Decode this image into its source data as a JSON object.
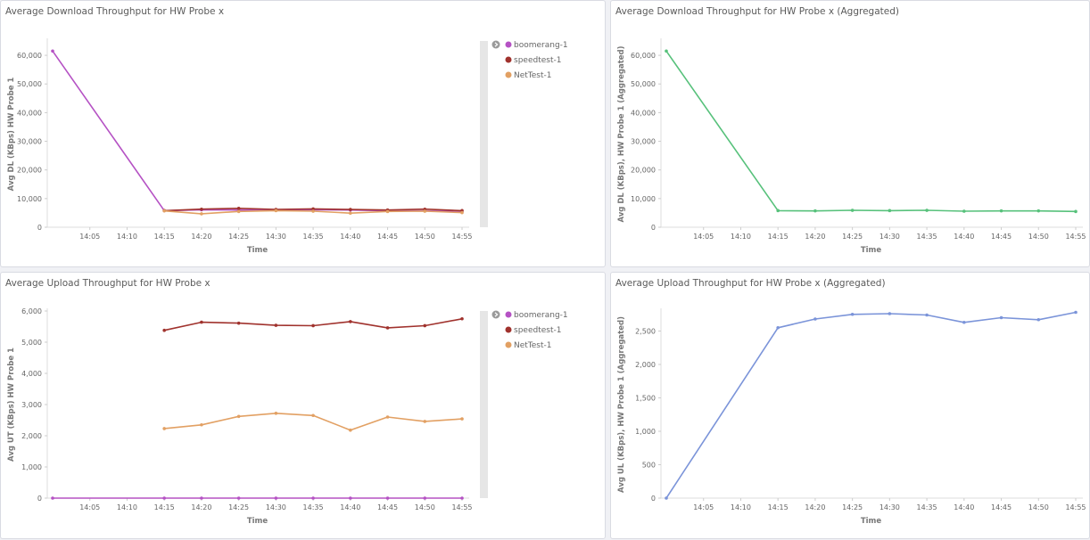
{
  "charts": [
    {
      "title": "Average Download Throughput for HW Probe x",
      "chart_data": {
        "type": "line",
        "title": "Average Download Throughput for HW Probe x",
        "xlabel": "Time",
        "ylabel": "Avg DL (KBps) HW Probe 1",
        "x": [
          "14:00",
          "14:05",
          "14:10",
          "14:15",
          "14:20",
          "14:25",
          "14:30",
          "14:35",
          "14:40",
          "14:45",
          "14:50",
          "14:55"
        ],
        "xticks": [
          "14:05",
          "14:10",
          "14:15",
          "14:20",
          "14:25",
          "14:30",
          "14:35",
          "14:40",
          "14:45",
          "14:50",
          "14:55"
        ],
        "ylim": [
          0,
          65000
        ],
        "yticks": [
          0,
          10000,
          20000,
          30000,
          40000,
          50000,
          60000
        ],
        "yticklabels": [
          "0",
          "10,000",
          "20,000",
          "30,000",
          "40,000",
          "50,000",
          "60,000"
        ],
        "grid": false,
        "legend": "right",
        "series": [
          {
            "name": "boomerang-1",
            "color": "#b552c4",
            "values": [
              61500,
              null,
              null,
              5800,
              6100,
              6000,
              5900,
              6100,
              6000,
              5800,
              5700,
              5500
            ]
          },
          {
            "name": "speedtest-1",
            "color": "#a0322d",
            "values": [
              null,
              null,
              null,
              5800,
              6300,
              6600,
              6200,
              6400,
              6200,
              6000,
              6300,
              5800
            ]
          },
          {
            "name": "NetTest-1",
            "color": "#e2a063",
            "values": [
              null,
              null,
              null,
              5700,
              4700,
              5500,
              5800,
              5600,
              4900,
              5500,
              5600,
              5100
            ]
          }
        ]
      }
    },
    {
      "title": "Average Download Throughput for HW Probe x (Aggregated)",
      "chart_data": {
        "type": "line",
        "title": "Average Download Throughput for HW Probe x (Aggregated)",
        "xlabel": "Time",
        "ylabel": "Avg DL (KBps), HW Probe 1 (Aggregated)",
        "x": [
          "14:00",
          "14:05",
          "14:10",
          "14:15",
          "14:20",
          "14:25",
          "14:30",
          "14:35",
          "14:40",
          "14:45",
          "14:50",
          "14:55"
        ],
        "xticks": [
          "14:05",
          "14:10",
          "14:15",
          "14:20",
          "14:25",
          "14:30",
          "14:35",
          "14:40",
          "14:45",
          "14:50",
          "14:55"
        ],
        "ylim": [
          0,
          65000
        ],
        "yticks": [
          0,
          10000,
          20000,
          30000,
          40000,
          50000,
          60000
        ],
        "yticklabels": [
          "0",
          "10,000",
          "20,000",
          "30,000",
          "40,000",
          "50,000",
          "60,000"
        ],
        "grid": false,
        "legend": "none",
        "series": [
          {
            "color": "#57c17b",
            "values": [
              61500,
              null,
              null,
              5800,
              5700,
              5900,
              5800,
              5900,
              5600,
              5700,
              5700,
              5500
            ]
          }
        ]
      }
    },
    {
      "title": "Average Upload Throughput for HW Probe x",
      "chart_data": {
        "type": "line",
        "title": "Average Upload Throughput for HW Probe x",
        "xlabel": "Time",
        "ylabel": "Avg UT (KBps) HW Probe 1",
        "x": [
          "14:00",
          "14:05",
          "14:10",
          "14:15",
          "14:20",
          "14:25",
          "14:30",
          "14:35",
          "14:40",
          "14:45",
          "14:50",
          "14:55"
        ],
        "xticks": [
          "14:05",
          "14:10",
          "14:15",
          "14:20",
          "14:25",
          "14:30",
          "14:35",
          "14:40",
          "14:45",
          "14:50",
          "14:55"
        ],
        "ylim": [
          0,
          6000
        ],
        "yticks": [
          0,
          1000,
          2000,
          3000,
          4000,
          5000,
          6000
        ],
        "yticklabels": [
          "0",
          "1,000",
          "2,000",
          "3,000",
          "4,000",
          "5,000",
          "6,000"
        ],
        "grid": false,
        "legend": "right",
        "series": [
          {
            "name": "boomerang-1",
            "color": "#b552c4",
            "values": [
              0,
              null,
              null,
              0,
              0,
              0,
              0,
              0,
              0,
              0,
              0,
              0
            ]
          },
          {
            "name": "speedtest-1",
            "color": "#a0322d",
            "values": [
              null,
              null,
              null,
              5380,
              5640,
              5610,
              5540,
              5530,
              5660,
              5460,
              5530,
              5750
            ]
          },
          {
            "name": "NetTest-1",
            "color": "#e2a063",
            "values": [
              null,
              null,
              null,
              2230,
              2350,
              2620,
              2720,
              2650,
              2180,
              2600,
              2460,
              2540
            ]
          }
        ]
      }
    },
    {
      "title": "Average Upload Throughput for HW Probe x (Aggregated)",
      "chart_data": {
        "type": "line",
        "title": "Average Upload Throughput for HW Probe x (Aggregated)",
        "xlabel": "Time",
        "ylabel": "Avg UL (KBps), HW Probe 1 (Aggregated)",
        "x": [
          "14:00",
          "14:05",
          "14:10",
          "14:15",
          "14:20",
          "14:25",
          "14:30",
          "14:35",
          "14:40",
          "14:45",
          "14:50",
          "14:55"
        ],
        "xticks": [
          "14:05",
          "14:10",
          "14:15",
          "14:20",
          "14:25",
          "14:30",
          "14:35",
          "14:40",
          "14:45",
          "14:50",
          "14:55"
        ],
        "ylim": [
          0,
          2800
        ],
        "yticks": [
          0,
          500,
          1000,
          1500,
          2000,
          2500
        ],
        "yticklabels": [
          "0",
          "500",
          "1,000",
          "1,500",
          "2,000",
          "2,500"
        ],
        "grid": false,
        "legend": "none",
        "series": [
          {
            "color": "#7b94d9",
            "values": [
              0,
              null,
              null,
              2550,
              2680,
              2750,
              2760,
              2740,
              2630,
              2700,
              2670,
              2780
            ]
          }
        ]
      }
    }
  ],
  "legend_toggle_icon": "chevron-right-circle-icon"
}
